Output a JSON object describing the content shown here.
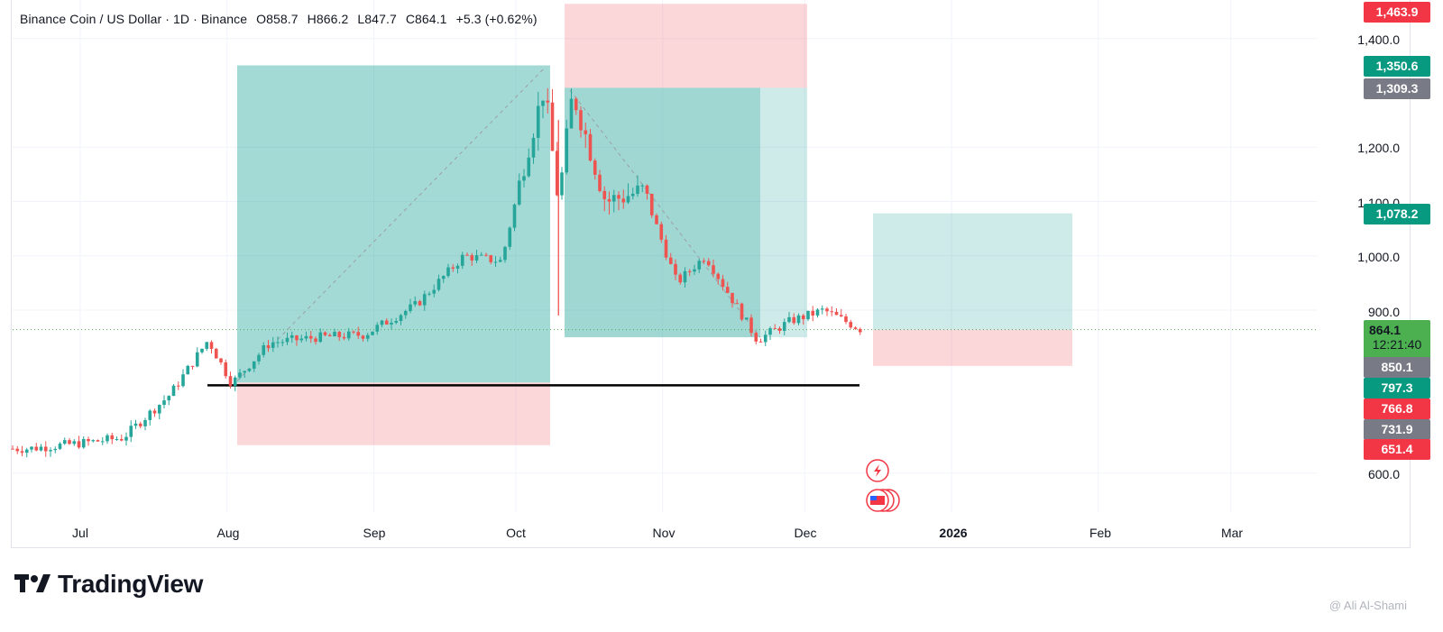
{
  "legend": {
    "symbol": "Binance Coin / US Dollar · 1D · Binance",
    "open": "O858.7",
    "high": "H866.2",
    "low": "L847.7",
    "close": "C864.1",
    "change": "+5.3 (+0.62%)"
  },
  "price_labels": {
    "top_red": "1,463.9",
    "green_1350": "1,350.6",
    "gray_1309": "1,309.3",
    "green_1078": "1,078.2",
    "last_price": "864.1",
    "countdown": "12:21:40",
    "gray_850": "850.1",
    "green_797": "797.3",
    "red_766": "766.8",
    "gray_731": "731.9",
    "red_651": "651.4"
  },
  "colors": {
    "up": "#26a69a",
    "down": "#ef5350",
    "target_zone": "#26a69a",
    "stop_zone": "#f23645",
    "price_label_green": "#089981",
    "price_label_red": "#f23645",
    "price_label_gray": "#787b86"
  },
  "icons": [
    "lightning-alert-icon",
    "us-flag-events-icon"
  ],
  "branding": {
    "logo_text": "TradingView",
    "watermark": "@ Ali Al-Shami"
  },
  "chart_data": {
    "type": "candlestick",
    "title": "Binance Coin / US Dollar · 1D · Binance",
    "y_ticks": [
      "600.0",
      "900.0",
      "1,000.0",
      "1,100.0",
      "1,200.0",
      "1,400.0"
    ],
    "x_ticks": [
      "Jul",
      "Aug",
      "Sep",
      "Oct",
      "Nov",
      "Dec",
      "2026",
      "Feb",
      "Mar"
    ],
    "ylim": [
      560,
      1480
    ],
    "series_close_approx": [
      {
        "date": "2025-06-20",
        "close": 645
      },
      {
        "date": "2025-07-01",
        "close": 655
      },
      {
        "date": "2025-07-10",
        "close": 665
      },
      {
        "date": "2025-07-20",
        "close": 745
      },
      {
        "date": "2025-07-28",
        "close": 845
      },
      {
        "date": "2025-08-02",
        "close": 765
      },
      {
        "date": "2025-08-10",
        "close": 840
      },
      {
        "date": "2025-08-20",
        "close": 850
      },
      {
        "date": "2025-08-30",
        "close": 855
      },
      {
        "date": "2025-09-10",
        "close": 910
      },
      {
        "date": "2025-09-20",
        "close": 1000
      },
      {
        "date": "2025-09-28",
        "close": 990
      },
      {
        "date": "2025-10-03",
        "close": 1180
      },
      {
        "date": "2025-10-07",
        "close": 1310
      },
      {
        "date": "2025-10-10",
        "close": 1100
      },
      {
        "date": "2025-10-13",
        "close": 1300
      },
      {
        "date": "2025-10-20",
        "close": 1100
      },
      {
        "date": "2025-10-28",
        "close": 1120
      },
      {
        "date": "2025-11-04",
        "close": 950
      },
      {
        "date": "2025-11-10",
        "close": 1000
      },
      {
        "date": "2025-11-21",
        "close": 845
      },
      {
        "date": "2025-11-28",
        "close": 880
      },
      {
        "date": "2025-12-05",
        "close": 900
      },
      {
        "date": "2025-12-13",
        "close": 864.1
      }
    ],
    "annotations": {
      "support_line": 765,
      "position_1": {
        "entry": 766.8,
        "target": 1350.6,
        "stop": 651.4
      },
      "position_2": {
        "entry": 1309.3,
        "target": 850.1,
        "stop": 1463.9
      },
      "position_3": {
        "entry": 864.1,
        "target": 1078.2,
        "stop": 797.3
      }
    }
  }
}
